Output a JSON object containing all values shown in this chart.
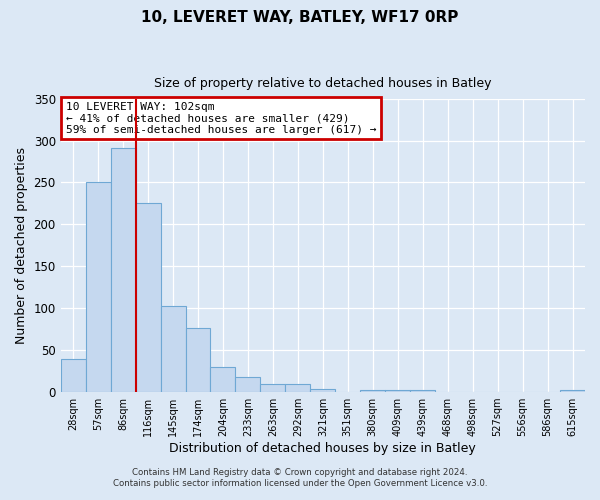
{
  "title1": "10, LEVERET WAY, BATLEY, WF17 0RP",
  "title2": "Size of property relative to detached houses in Batley",
  "xlabel": "Distribution of detached houses by size in Batley",
  "ylabel": "Number of detached properties",
  "bar_labels": [
    "28sqm",
    "57sqm",
    "86sqm",
    "116sqm",
    "145sqm",
    "174sqm",
    "204sqm",
    "233sqm",
    "263sqm",
    "292sqm",
    "321sqm",
    "351sqm",
    "380sqm",
    "409sqm",
    "439sqm",
    "468sqm",
    "498sqm",
    "527sqm",
    "556sqm",
    "586sqm",
    "615sqm"
  ],
  "bar_values": [
    39,
    250,
    291,
    225,
    103,
    77,
    30,
    18,
    10,
    10,
    4,
    0,
    2,
    2,
    3,
    0,
    0,
    0,
    0,
    0,
    2
  ],
  "bar_color": "#c5d8ef",
  "bar_edge_color": "#6fa8d4",
  "vline_color": "#cc0000",
  "ylim": [
    0,
    350
  ],
  "yticks": [
    0,
    50,
    100,
    150,
    200,
    250,
    300,
    350
  ],
  "annotation_title": "10 LEVERET WAY: 102sqm",
  "annotation_line1": "← 41% of detached houses are smaller (429)",
  "annotation_line2": "59% of semi-detached houses are larger (617) →",
  "annotation_box_color": "#cc0000",
  "footer1": "Contains HM Land Registry data © Crown copyright and database right 2024.",
  "footer2": "Contains public sector information licensed under the Open Government Licence v3.0.",
  "background_color": "#dce8f5",
  "plot_background": "#dce8f5",
  "grid_color": "#ffffff"
}
